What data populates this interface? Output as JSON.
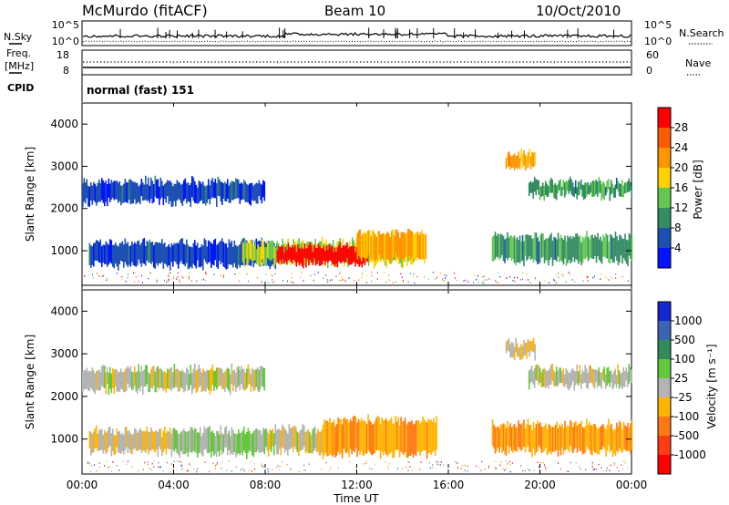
{
  "header": {
    "title": "McMurdo (fitACF)",
    "beam": "Beam 10",
    "date": "10/Oct/2010"
  },
  "status_panels": {
    "nsky_label": "N.Sky",
    "nsearch_label": "N.Search",
    "noise_ticks_left": [
      "10^5",
      "10^0"
    ],
    "noise_ticks_right": [
      "10^5",
      "10^0"
    ],
    "freq_label_1": "Freq.",
    "freq_label_2": "[MHz]",
    "freq_ticks": [
      "18",
      "8"
    ],
    "nave_label": "Nave",
    "nave_ticks": [
      "60",
      "0"
    ],
    "cpid_label": "CPID",
    "cpid_value": "normal (fast) 151"
  },
  "colorbars": {
    "power": {
      "label": "Power [dB]",
      "ticks": [
        "28",
        "24",
        "20",
        "16",
        "12",
        "8",
        "4"
      ],
      "colors": [
        "#ff0000",
        "#ff5a00",
        "#ff9600",
        "#ffd200",
        "#64c850",
        "#328c64",
        "#1e50b4",
        "#0014ff"
      ]
    },
    "velocity": {
      "label": "Velocity [m s⁻¹]",
      "ticks": [
        "1000",
        "500",
        "100",
        "25",
        "-25",
        "-100",
        "-500",
        "-1000"
      ],
      "colors": [
        "#1428d2",
        "#3c64b4",
        "#328c5a",
        "#64c83c",
        "#b4b4b4",
        "#ffb400",
        "#ff7814",
        "#ff3c14",
        "#ff0000"
      ]
    }
  },
  "chart_data": [
    {
      "type": "line",
      "title": "N.Sky / N.Search",
      "xlim": [
        "00:00",
        "24:00"
      ],
      "yscale": "log",
      "ylim": [
        1,
        100000
      ]
    },
    {
      "type": "scatter",
      "title": "Freq. [MHz] / Nave",
      "xlim": [
        "00:00",
        "24:00"
      ],
      "ylim_left": [
        8,
        18
      ],
      "ylim_right": [
        0,
        60
      ]
    },
    {
      "type": "heatmap",
      "quantity": "Power [dB]",
      "xlabel": "Time UT",
      "ylabel": "Slant Range [km]",
      "ylim": [
        180,
        4500
      ],
      "xticks": [
        "00:00",
        "04:00",
        "08:00",
        "12:00",
        "16:00",
        "20:00",
        "00:00"
      ],
      "yticks": [
        1000,
        2000,
        3000,
        4000
      ],
      "color_scale": [
        4,
        28
      ],
      "regions": [
        {
          "t_start": 0.3,
          "t_end": 8.5,
          "range_lo": 600,
          "range_hi": 1250,
          "level": 8
        },
        {
          "t_start": 7.0,
          "t_end": 14.5,
          "range_lo": 650,
          "range_hi": 1250,
          "level": 16
        },
        {
          "t_start": 8.5,
          "t_end": 12.5,
          "range_lo": 650,
          "range_hi": 1150,
          "level": 28
        },
        {
          "t_start": 12.0,
          "t_end": 15.0,
          "range_lo": 750,
          "range_hi": 1500,
          "level": 20
        },
        {
          "t_start": 17.9,
          "t_end": 24.0,
          "range_lo": 700,
          "range_hi": 1400,
          "level": 12
        },
        {
          "t_start": 0.0,
          "t_end": 8.0,
          "range_lo": 2100,
          "range_hi": 2700,
          "level": 8
        },
        {
          "t_start": 19.5,
          "t_end": 24.0,
          "range_lo": 2250,
          "range_hi": 2700,
          "level": 12
        },
        {
          "t_start": 18.5,
          "t_end": 19.8,
          "range_lo": 2900,
          "range_hi": 3350,
          "level": 20
        }
      ]
    },
    {
      "type": "heatmap",
      "quantity": "Velocity [m s⁻¹]",
      "xlabel": "Time UT",
      "ylabel": "Slant Range [km]",
      "ylim": [
        180,
        4500
      ],
      "xticks": [
        "00:00",
        "04:00",
        "08:00",
        "12:00",
        "16:00",
        "20:00",
        "00:00"
      ],
      "yticks": [
        1000,
        2000,
        3000,
        4000
      ],
      "color_scale": [
        -1000,
        1000
      ],
      "regions": [
        {
          "t_start": 0.3,
          "t_end": 4.0,
          "range_lo": 650,
          "range_hi": 1250,
          "level": -100
        },
        {
          "t_start": 4.0,
          "t_end": 8.0,
          "range_lo": 600,
          "range_hi": 1250,
          "level": 100
        },
        {
          "t_start": 8.0,
          "t_end": 10.5,
          "range_lo": 650,
          "range_hi": 1300,
          "level": 0
        },
        {
          "t_start": 10.5,
          "t_end": 15.5,
          "range_lo": 600,
          "range_hi": 1500,
          "level": -300
        },
        {
          "t_start": 17.9,
          "t_end": 24.0,
          "range_lo": 650,
          "range_hi": 1400,
          "level": -300
        },
        {
          "t_start": 0.0,
          "t_end": 8.0,
          "range_lo": 2100,
          "range_hi": 2700,
          "level": 0
        },
        {
          "t_start": 19.5,
          "t_end": 24.0,
          "range_lo": 2200,
          "range_hi": 2700,
          "level": 0
        },
        {
          "t_start": 18.5,
          "t_end": 19.8,
          "range_lo": 2900,
          "range_hi": 3350,
          "level": -100
        }
      ]
    }
  ]
}
